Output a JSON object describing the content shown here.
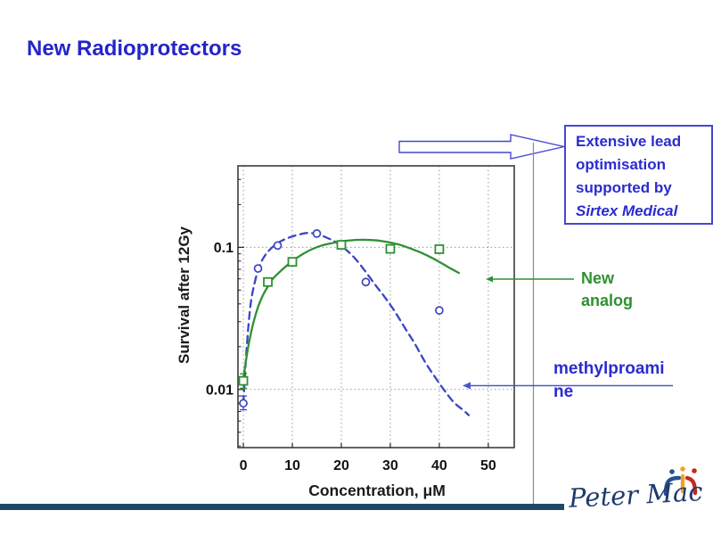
{
  "slide": {
    "title": "New Radioprotectors",
    "callout": {
      "lines": [
        "Extensive lead",
        "optimisation",
        "supported by",
        "Sirtex Medical"
      ],
      "border_color": "#4646d2",
      "text_color": "#2b2bd0"
    },
    "labels": {
      "new_analog": {
        "lines": [
          "New",
          "analog"
        ],
        "color": "#2e9132"
      },
      "methylproamine": {
        "lines": [
          "methylproami",
          "ne"
        ],
        "color": "#2b2bd0"
      }
    },
    "logo": {
      "text": "Peter Mac",
      "icon": "three-figures-icon",
      "color": "#1e3a6d",
      "icon_colors": [
        "#27508e",
        "#f0a32a",
        "#c5281c"
      ]
    },
    "footer_bar_color": "#1f4868",
    "title_color": "#2424cc"
  },
  "chart_data": {
    "type": "scatter",
    "title": "",
    "xlabel": "Concentration, μM",
    "ylabel": "Survival after 12Gy",
    "x_ticks": [
      0,
      10,
      20,
      30,
      40,
      50
    ],
    "y_ticks": [
      0.1,
      0.01
    ],
    "y_minor_ticks": [
      0.004,
      0.005,
      0.006,
      0.007,
      0.008,
      0.009,
      0.02,
      0.03,
      0.04,
      0.05,
      0.06,
      0.07,
      0.08,
      0.09,
      0.2,
      0.3
    ],
    "xlim": [
      -1.1,
      55.3
    ],
    "ylim": [
      0.0039,
      0.374
    ],
    "y_scale": "log",
    "grid": {
      "x_major": true,
      "y_major": true,
      "style": "dotted"
    },
    "series": [
      {
        "name": "methylproamine",
        "marker": "circle",
        "line_style": "dashed",
        "color": "#3b44c4",
        "points": [
          [
            0,
            0.008
          ],
          [
            3,
            0.071
          ],
          [
            7,
            0.103
          ],
          [
            15,
            0.125
          ],
          [
            25,
            0.057
          ],
          [
            40,
            0.036
          ]
        ],
        "error_bars": [
          {
            "x": 0,
            "y": 0.008,
            "y_lo": 0.0072,
            "y_hi": 0.009
          }
        ],
        "fit_curve": [
          [
            0,
            0.008
          ],
          [
            0.7,
            0.02
          ],
          [
            1.5,
            0.04
          ],
          [
            2.5,
            0.06
          ],
          [
            3.5,
            0.077
          ],
          [
            5,
            0.093
          ],
          [
            7,
            0.107
          ],
          [
            9,
            0.116
          ],
          [
            11,
            0.122
          ],
          [
            13,
            0.126
          ],
          [
            15,
            0.124
          ],
          [
            17,
            0.117
          ],
          [
            19,
            0.108
          ],
          [
            21,
            0.096
          ],
          [
            23,
            0.082
          ],
          [
            25,
            0.067
          ],
          [
            27,
            0.054
          ],
          [
            29,
            0.044
          ],
          [
            31,
            0.035
          ],
          [
            33,
            0.027
          ],
          [
            35,
            0.021
          ],
          [
            37,
            0.0158
          ],
          [
            39,
            0.0124
          ],
          [
            41,
            0.0099
          ],
          [
            43,
            0.0081
          ],
          [
            45,
            0.0071
          ],
          [
            46,
            0.0066
          ]
        ]
      },
      {
        "name": "New analog",
        "marker": "square",
        "line_style": "solid",
        "color": "#2e9132",
        "points": [
          [
            0,
            0.0115
          ],
          [
            5,
            0.057
          ],
          [
            10,
            0.079
          ],
          [
            20,
            0.104
          ],
          [
            30,
            0.0975
          ],
          [
            40,
            0.097
          ]
        ],
        "error_bars": [
          {
            "x": 0,
            "y": 0.0115,
            "y_lo": 0.0102,
            "y_hi": 0.0129
          }
        ],
        "fit_curve": [
          [
            0,
            0.012
          ],
          [
            1,
            0.02
          ],
          [
            2,
            0.029
          ],
          [
            3,
            0.038
          ],
          [
            4,
            0.046
          ],
          [
            5,
            0.053
          ],
          [
            6,
            0.06
          ],
          [
            8,
            0.07
          ],
          [
            10,
            0.08
          ],
          [
            12,
            0.089
          ],
          [
            14,
            0.097
          ],
          [
            16,
            0.103
          ],
          [
            18,
            0.107
          ],
          [
            20,
            0.11
          ],
          [
            22,
            0.112
          ],
          [
            24,
            0.113
          ],
          [
            26,
            0.1125
          ],
          [
            28,
            0.111
          ],
          [
            30,
            0.108
          ],
          [
            32,
            0.104
          ],
          [
            34,
            0.0985
          ],
          [
            36,
            0.0925
          ],
          [
            38,
            0.086
          ],
          [
            40,
            0.079
          ],
          [
            42,
            0.072
          ],
          [
            44,
            0.066
          ]
        ]
      }
    ]
  }
}
